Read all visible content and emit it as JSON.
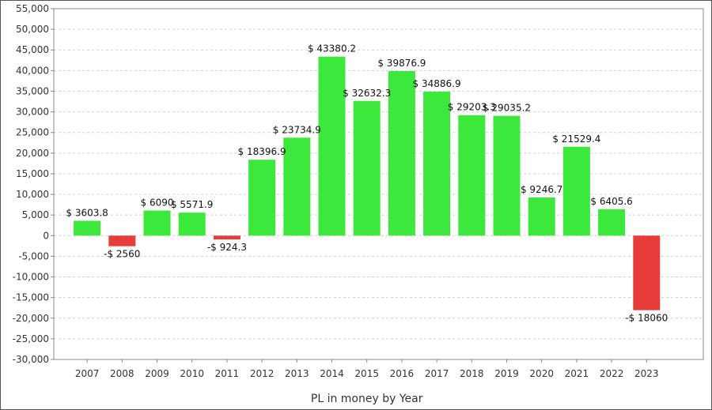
{
  "chart_data": {
    "type": "bar",
    "title": "",
    "xlabel": "PL in money by Year",
    "ylabel": "",
    "categories": [
      "2007",
      "2008",
      "2009",
      "2010",
      "2011",
      "2012",
      "2013",
      "2014",
      "2015",
      "2016",
      "2017",
      "2018",
      "2019",
      "2020",
      "2021",
      "2022",
      "2023"
    ],
    "values": [
      3603.8,
      -2560,
      6090,
      5571.9,
      -924.3,
      18396.9,
      23734.9,
      43380.2,
      32632.3,
      39876.9,
      34886.9,
      29203.3,
      29035.2,
      9246.7,
      21529.4,
      6405.6,
      -18060
    ],
    "value_labels": [
      "$ 3603.8",
      "-$ 2560",
      "$ 6090",
      "$ 5571.9",
      "-$ 924.3",
      "$ 18396.9",
      "$ 23734.9",
      "$ 43380.2",
      "$ 32632.3",
      "$ 39876.9",
      "$ 34886.9",
      "$ 29203.3",
      "$ 29035.2",
      "$ 9246.7",
      "$ 21529.4",
      "$ 6405.6",
      "-$ 18060"
    ],
    "ylim": [
      -30000,
      55000
    ],
    "yticks": [
      -30000,
      -25000,
      -20000,
      -15000,
      -10000,
      -5000,
      0,
      5000,
      10000,
      15000,
      20000,
      25000,
      30000,
      35000,
      40000,
      45000,
      50000,
      55000
    ],
    "ytick_labels": [
      "-30,000",
      "-25,000",
      "-20,000",
      "-15,000",
      "-10,000",
      "-5,000",
      "0",
      "5,000",
      "10,000",
      "15,000",
      "20,000",
      "25,000",
      "30,000",
      "35,000",
      "40,000",
      "45,000",
      "50,000",
      "55,000"
    ],
    "grid": true,
    "colors": {
      "positive": "#3de83d",
      "negative": "#e63c3c",
      "grid": "#d0d0d0",
      "axis": "#888888"
    }
  }
}
